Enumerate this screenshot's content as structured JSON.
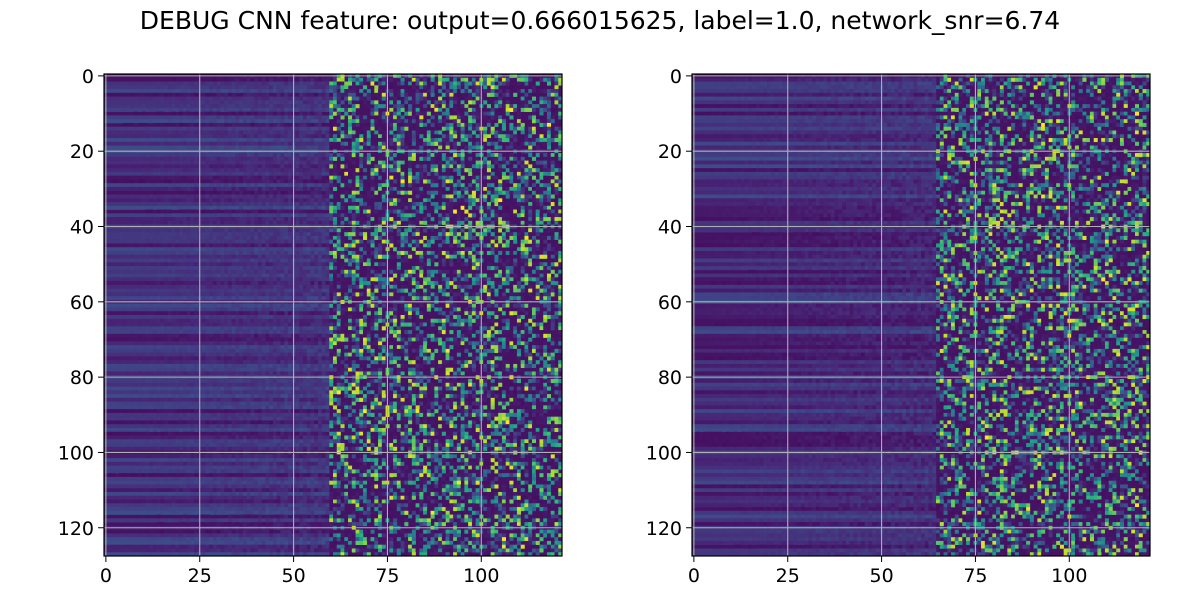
{
  "chart_data": {
    "title": "DEBUG CNN feature: output=0.666015625, label=1.0, network_snr=6.74",
    "panels": [
      {
        "type": "heatmap",
        "colormap": "viridis",
        "rows": 128,
        "cols": 122,
        "xlim": [
          -0.5,
          121.5
        ],
        "ylim": [
          127.5,
          -0.5
        ],
        "x_ticks": [
          0,
          25,
          50,
          75,
          100
        ],
        "y_ticks": [
          0,
          20,
          40,
          60,
          80,
          100,
          120
        ],
        "grid": true,
        "noise_onset_col": 60
      },
      {
        "type": "heatmap",
        "colormap": "viridis",
        "rows": 128,
        "cols": 122,
        "xlim": [
          -0.5,
          121.5
        ],
        "ylim": [
          127.5,
          -0.5
        ],
        "x_ticks": [
          0,
          25,
          50,
          75,
          100
        ],
        "y_ticks": [
          0,
          20,
          40,
          60,
          80,
          100,
          120
        ],
        "grid": true,
        "noise_onset_col": 65
      }
    ]
  }
}
